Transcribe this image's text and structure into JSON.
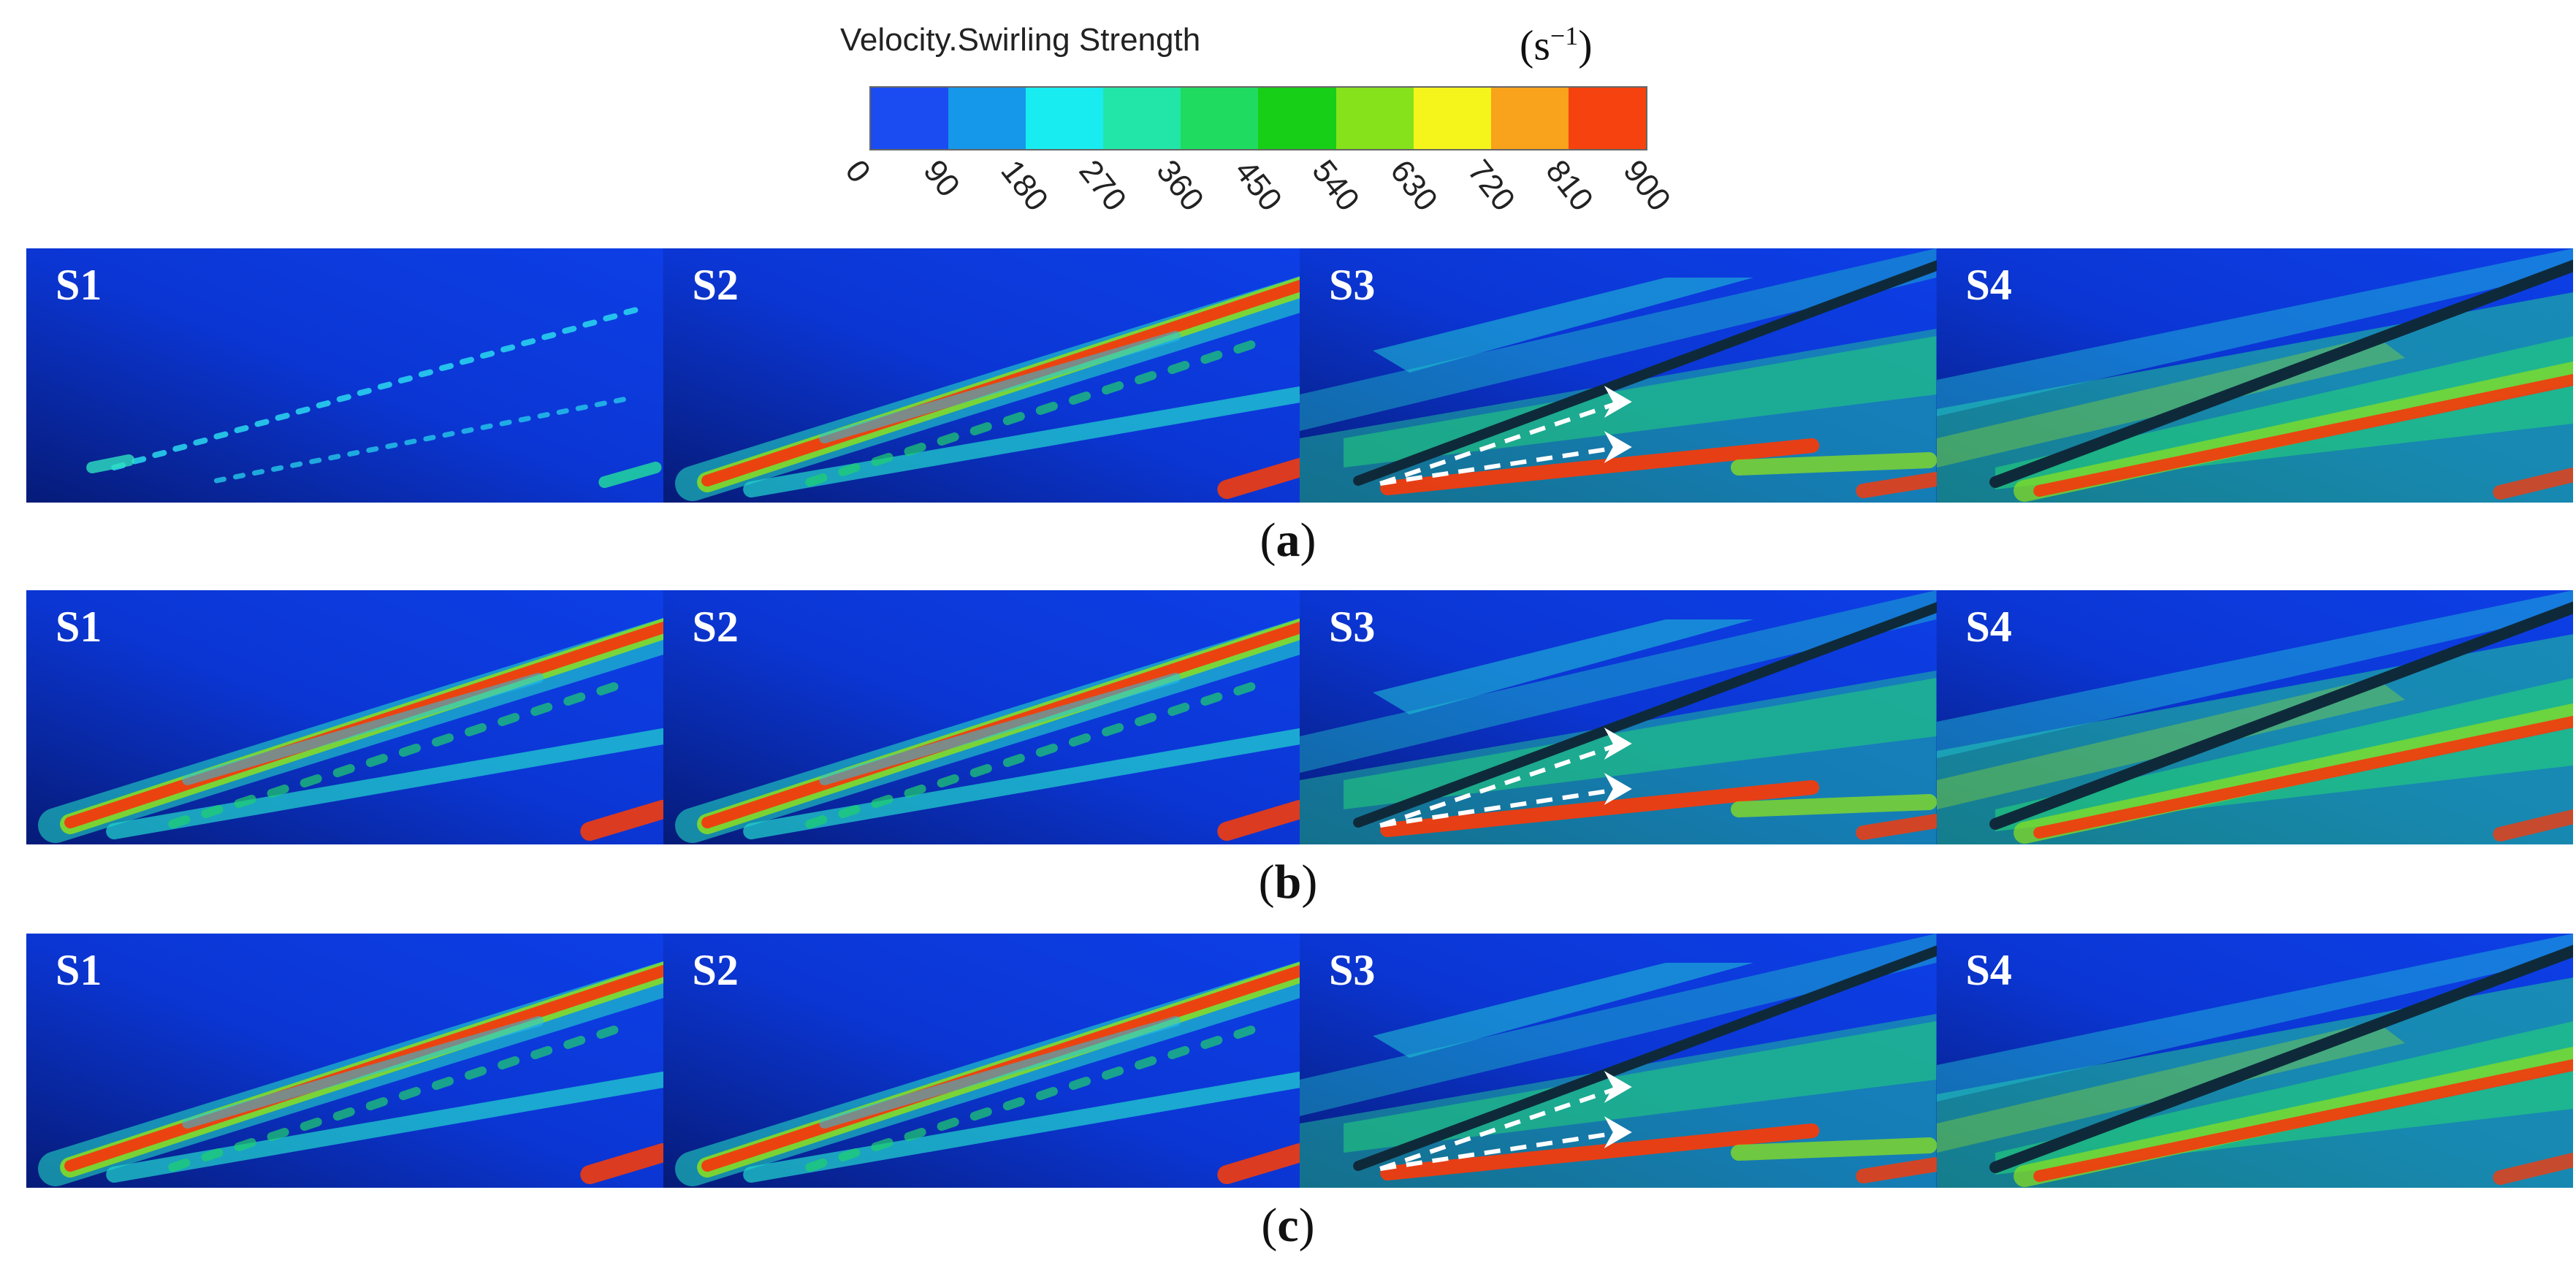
{
  "colorbar": {
    "title": "Velocity.Swirling Strength",
    "unit_base": "(s",
    "unit_exp": "−1",
    "unit_close": ")",
    "ticks": [
      "0",
      "90",
      "180",
      "270",
      "360",
      "450",
      "540",
      "630",
      "720",
      "810",
      "900"
    ],
    "colors": [
      "#1a4cf2",
      "#1597ea",
      "#18ecf0",
      "#22e6a8",
      "#1fdc61",
      "#16cf16",
      "#86e21b",
      "#f5f51c",
      "#f8a31b",
      "#f5420e"
    ]
  },
  "rows": [
    {
      "caption_open": "(",
      "caption_letter": "a",
      "caption_close": ")",
      "panels": [
        {
          "label": "S1",
          "intensity": 0
        },
        {
          "label": "S2",
          "intensity": 1
        },
        {
          "label": "S3",
          "intensity": 2
        },
        {
          "label": "S4",
          "intensity": 3
        }
      ]
    },
    {
      "caption_open": "(",
      "caption_letter": "b",
      "caption_close": ")",
      "panels": [
        {
          "label": "S1",
          "intensity": 1
        },
        {
          "label": "S2",
          "intensity": 1
        },
        {
          "label": "S3",
          "intensity": 2
        },
        {
          "label": "S4",
          "intensity": 3
        }
      ]
    },
    {
      "caption_open": "(",
      "caption_letter": "c",
      "caption_close": ")",
      "panels": [
        {
          "label": "S1",
          "intensity": 1
        },
        {
          "label": "S2",
          "intensity": 1
        },
        {
          "label": "S3",
          "intensity": 2
        },
        {
          "label": "S4",
          "intensity": 3
        }
      ]
    }
  ]
}
